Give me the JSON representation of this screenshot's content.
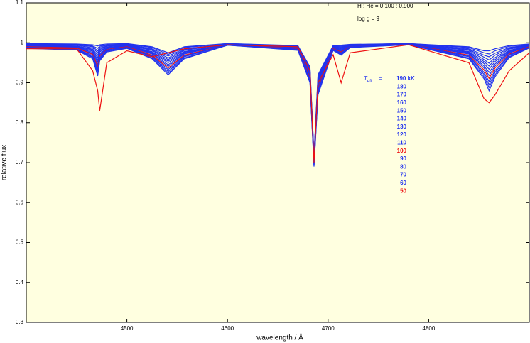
{
  "chart_data": {
    "type": "line",
    "xlabel": "wavelength / Å",
    "ylabel": "relative flux",
    "annotations": [
      "H : He = 0.100 : 0.900",
      "log g = 9"
    ],
    "legend_title": {
      "symbol": "T",
      "subscript": "eff",
      "equals": "="
    },
    "xlim": [
      4400,
      4900
    ],
    "ylim": [
      0.3,
      1.1
    ],
    "xticks": [
      4500,
      4600,
      4700,
      4800
    ],
    "yticks": [
      0.3,
      0.4,
      0.5,
      0.6,
      0.7,
      0.8,
      0.9,
      1.0,
      1.1
    ],
    "x": [
      4400,
      4450,
      4466,
      4471,
      4473,
      4480,
      4500,
      4525,
      4541,
      4557,
      4600,
      4670,
      4682,
      4686,
      4690,
      4705,
      4713,
      4722,
      4780,
      4840,
      4855,
      4860,
      4866,
      4880,
      4900
    ],
    "series": [
      {
        "name": "190 kK",
        "color": "#2233ee",
        "values": [
          0.998,
          0.997,
          0.995,
          0.992,
          0.995,
          0.997,
          0.998,
          0.99,
          0.975,
          0.99,
          0.998,
          0.993,
          0.94,
          0.72,
          0.92,
          0.993,
          0.994,
          0.996,
          0.998,
          0.99,
          0.98,
          0.98,
          0.985,
          0.993,
          0.997
        ]
      },
      {
        "name": "180",
        "color": "#2233ee",
        "values": [
          0.997,
          0.996,
          0.992,
          0.986,
          0.992,
          0.995,
          0.997,
          0.988,
          0.971,
          0.988,
          0.998,
          0.992,
          0.937,
          0.718,
          0.916,
          0.992,
          0.992,
          0.995,
          0.998,
          0.988,
          0.975,
          0.972,
          0.98,
          0.991,
          0.996
        ]
      },
      {
        "name": "170",
        "color": "#2233ee",
        "values": [
          0.996,
          0.995,
          0.99,
          0.98,
          0.989,
          0.994,
          0.996,
          0.985,
          0.967,
          0.985,
          0.997,
          0.991,
          0.934,
          0.715,
          0.912,
          0.991,
          0.99,
          0.995,
          0.998,
          0.985,
          0.969,
          0.965,
          0.974,
          0.988,
          0.995
        ]
      },
      {
        "name": "160",
        "color": "#2233ee",
        "values": [
          0.995,
          0.994,
          0.987,
          0.975,
          0.986,
          0.992,
          0.995,
          0.983,
          0.962,
          0.983,
          0.997,
          0.99,
          0.931,
          0.713,
          0.908,
          0.99,
          0.988,
          0.994,
          0.997,
          0.983,
          0.964,
          0.957,
          0.969,
          0.986,
          0.995
        ]
      },
      {
        "name": "150",
        "color": "#2233ee",
        "values": [
          0.994,
          0.992,
          0.984,
          0.969,
          0.983,
          0.991,
          0.994,
          0.981,
          0.958,
          0.981,
          0.997,
          0.989,
          0.928,
          0.711,
          0.905,
          0.989,
          0.986,
          0.994,
          0.997,
          0.981,
          0.958,
          0.949,
          0.963,
          0.984,
          0.994
        ]
      },
      {
        "name": "140",
        "color": "#2233ee",
        "values": [
          0.993,
          0.991,
          0.982,
          0.963,
          0.98,
          0.989,
          0.993,
          0.978,
          0.954,
          0.978,
          0.996,
          0.988,
          0.925,
          0.708,
          0.901,
          0.988,
          0.984,
          0.993,
          0.997,
          0.978,
          0.953,
          0.942,
          0.958,
          0.981,
          0.993
        ]
      },
      {
        "name": "130",
        "color": "#2233ee",
        "values": [
          0.992,
          0.99,
          0.979,
          0.957,
          0.977,
          0.988,
          0.992,
          0.976,
          0.95,
          0.976,
          0.996,
          0.987,
          0.922,
          0.706,
          0.897,
          0.987,
          0.982,
          0.992,
          0.997,
          0.976,
          0.948,
          0.934,
          0.953,
          0.979,
          0.992
        ]
      },
      {
        "name": "120",
        "color": "#2233ee",
        "values": [
          0.992,
          0.989,
          0.976,
          0.952,
          0.973,
          0.986,
          0.992,
          0.974,
          0.945,
          0.974,
          0.996,
          0.987,
          0.918,
          0.704,
          0.893,
          0.987,
          0.981,
          0.992,
          0.996,
          0.974,
          0.942,
          0.926,
          0.947,
          0.977,
          0.992
        ]
      },
      {
        "name": "110",
        "color": "#2233ee",
        "values": [
          0.991,
          0.988,
          0.973,
          0.946,
          0.97,
          0.985,
          0.991,
          0.972,
          0.941,
          0.972,
          0.996,
          0.986,
          0.915,
          0.702,
          0.889,
          0.986,
          0.979,
          0.991,
          0.996,
          0.972,
          0.937,
          0.918,
          0.942,
          0.975,
          0.991
        ]
      },
      {
        "name": "100",
        "color": "#ee1111",
        "values": [
          0.99,
          0.987,
          0.971,
          0.94,
          0.967,
          0.983,
          0.99,
          0.969,
          0.937,
          0.969,
          0.995,
          0.985,
          0.912,
          0.699,
          0.885,
          0.985,
          0.977,
          0.99,
          0.996,
          0.969,
          0.932,
          0.911,
          0.937,
          0.972,
          0.99
        ]
      },
      {
        "name": "90",
        "color": "#2233ee",
        "values": [
          0.989,
          0.985,
          0.968,
          0.934,
          0.964,
          0.982,
          0.989,
          0.967,
          0.933,
          0.967,
          0.995,
          0.984,
          0.909,
          0.697,
          0.882,
          0.984,
          0.975,
          0.99,
          0.996,
          0.967,
          0.926,
          0.903,
          0.931,
          0.97,
          0.989
        ]
      },
      {
        "name": "80",
        "color": "#2233ee",
        "values": [
          0.988,
          0.984,
          0.965,
          0.929,
          0.961,
          0.98,
          0.988,
          0.965,
          0.928,
          0.965,
          0.995,
          0.983,
          0.906,
          0.695,
          0.878,
          0.983,
          0.973,
          0.989,
          0.995,
          0.965,
          0.921,
          0.895,
          0.926,
          0.968,
          0.988
        ]
      },
      {
        "name": "70",
        "color": "#2233ee",
        "values": [
          0.987,
          0.983,
          0.963,
          0.923,
          0.958,
          0.979,
          0.987,
          0.962,
          0.924,
          0.962,
          0.994,
          0.982,
          0.903,
          0.692,
          0.874,
          0.982,
          0.971,
          0.989,
          0.995,
          0.962,
          0.915,
          0.888,
          0.92,
          0.965,
          0.988
        ]
      },
      {
        "name": "60",
        "color": "#2233ee",
        "values": [
          0.986,
          0.982,
          0.96,
          0.917,
          0.955,
          0.977,
          0.986,
          0.96,
          0.92,
          0.96,
          0.994,
          0.981,
          0.9,
          0.69,
          0.87,
          0.981,
          0.969,
          0.988,
          0.995,
          0.96,
          0.91,
          0.88,
          0.915,
          0.963,
          0.987
        ]
      },
      {
        "name": "50",
        "color": "#ee1111",
        "values": [
          0.985,
          0.985,
          0.93,
          0.88,
          0.83,
          0.95,
          0.98,
          0.965,
          0.975,
          0.985,
          0.995,
          0.99,
          0.93,
          0.7,
          0.9,
          0.97,
          0.9,
          0.975,
          0.995,
          0.95,
          0.86,
          0.85,
          0.87,
          0.93,
          0.975
        ]
      }
    ]
  }
}
